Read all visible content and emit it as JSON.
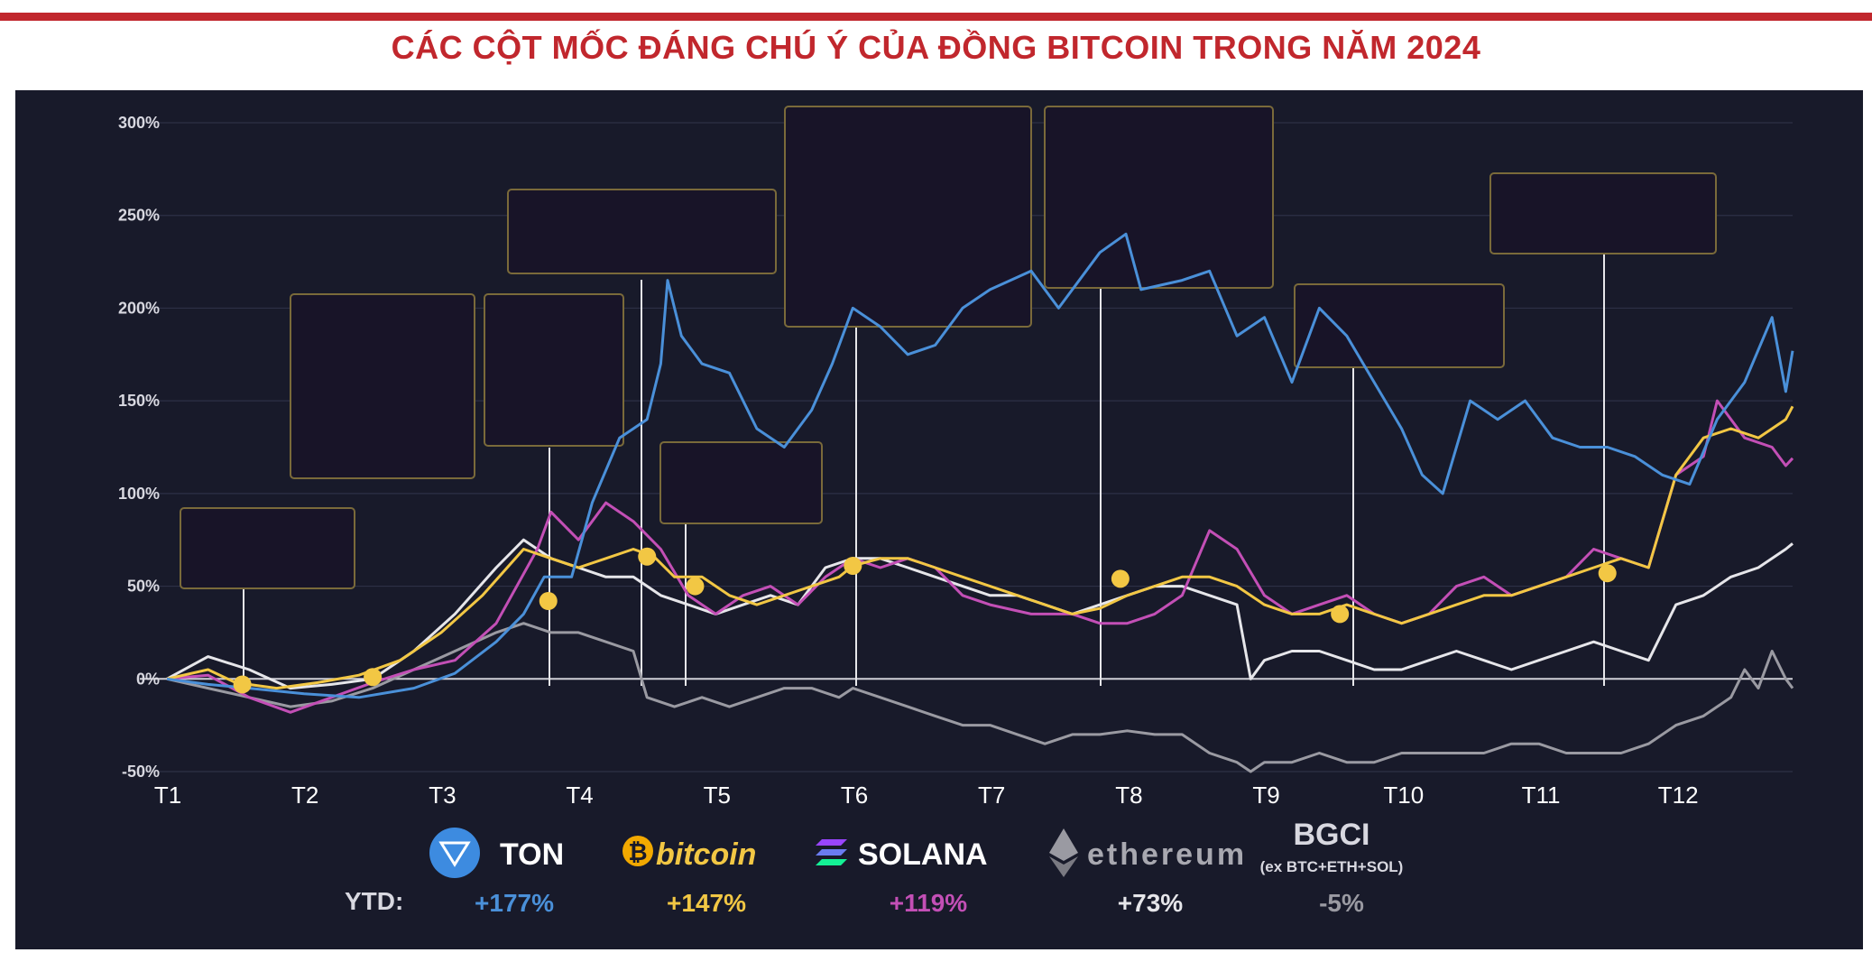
{
  "header": {
    "title": "CÁC CỘT MỐC ĐÁNG CHÚ Ý CỦA ĐỒNG BITCOIN TRONG NĂM 2024"
  },
  "legend": {
    "ytd_label": "YTD:",
    "items": [
      {
        "name": "TON",
        "ytd": "+177%",
        "color": "#4a90d9",
        "icon": "ton-icon"
      },
      {
        "name": "bitcoin",
        "ytd": "+147%",
        "color": "#f2c744",
        "icon": "bitcoin-icon"
      },
      {
        "name": "SOLANA",
        "ytd": "+119%",
        "color": "#c34fb6",
        "icon": "solana-icon"
      },
      {
        "name": "ethereum",
        "ytd": "+73%",
        "color": "#e6e6ea",
        "icon": "ethereum-icon"
      },
      {
        "name": "BGCI",
        "sub": "(ex BTC+ETH+SOL)",
        "ytd": "-5%",
        "color": "#9a9aa2",
        "icon": ""
      }
    ]
  },
  "colors": {
    "accent": "#c1272d",
    "background": "#181a2a",
    "milestone": "#f2c744"
  },
  "chart_data": {
    "type": "line",
    "x_ticks": [
      "T1",
      "T2",
      "T3",
      "T4",
      "T5",
      "T6",
      "T7",
      "T8",
      "T9",
      "T10",
      "T11",
      "T12"
    ],
    "y_ticks": [
      "300%",
      "250%",
      "200%",
      "150%",
      "100%",
      "50%",
      "0%",
      "-50%"
    ],
    "ylim": [
      -50,
      300
    ],
    "x_range": [
      0,
      11.85
    ],
    "grid": true,
    "series": [
      {
        "name": "TON",
        "color": "#4a90d9",
        "points": [
          [
            0,
            0
          ],
          [
            0.3,
            -3
          ],
          [
            0.6,
            -5
          ],
          [
            1,
            -8
          ],
          [
            1.4,
            -10
          ],
          [
            1.8,
            -5
          ],
          [
            2.1,
            3
          ],
          [
            2.4,
            20
          ],
          [
            2.6,
            35
          ],
          [
            2.75,
            55
          ],
          [
            2.95,
            55
          ],
          [
            3.1,
            95
          ],
          [
            3.3,
            130
          ],
          [
            3.5,
            140
          ],
          [
            3.6,
            170
          ],
          [
            3.65,
            215
          ],
          [
            3.75,
            185
          ],
          [
            3.9,
            170
          ],
          [
            4.1,
            165
          ],
          [
            4.3,
            135
          ],
          [
            4.5,
            125
          ],
          [
            4.7,
            145
          ],
          [
            4.85,
            170
          ],
          [
            5.0,
            200
          ],
          [
            5.2,
            190
          ],
          [
            5.4,
            175
          ],
          [
            5.6,
            180
          ],
          [
            5.8,
            200
          ],
          [
            6.0,
            210
          ],
          [
            6.3,
            220
          ],
          [
            6.5,
            200
          ],
          [
            6.8,
            230
          ],
          [
            6.99,
            240
          ],
          [
            7.1,
            210
          ],
          [
            7.4,
            215
          ],
          [
            7.6,
            220
          ],
          [
            7.8,
            185
          ],
          [
            8.0,
            195
          ],
          [
            8.2,
            160
          ],
          [
            8.4,
            200
          ],
          [
            8.6,
            185
          ],
          [
            8.8,
            160
          ],
          [
            9.0,
            135
          ],
          [
            9.15,
            110
          ],
          [
            9.3,
            100
          ],
          [
            9.5,
            150
          ],
          [
            9.7,
            140
          ],
          [
            9.9,
            150
          ],
          [
            10.1,
            130
          ],
          [
            10.3,
            125
          ],
          [
            10.5,
            125
          ],
          [
            10.7,
            120
          ],
          [
            10.9,
            110
          ],
          [
            11.1,
            105
          ],
          [
            11.3,
            140
          ],
          [
            11.5,
            160
          ],
          [
            11.7,
            195
          ],
          [
            11.8,
            155
          ],
          [
            11.85,
            177
          ]
        ]
      },
      {
        "name": "SOLANA",
        "color": "#c34fb6",
        "points": [
          [
            0,
            0
          ],
          [
            0.3,
            2
          ],
          [
            0.6,
            -10
          ],
          [
            0.9,
            -18
          ],
          [
            1.2,
            -10
          ],
          [
            1.5,
            -2
          ],
          [
            1.8,
            5
          ],
          [
            2.1,
            10
          ],
          [
            2.4,
            30
          ],
          [
            2.7,
            70
          ],
          [
            2.8,
            90
          ],
          [
            3.0,
            75
          ],
          [
            3.2,
            95
          ],
          [
            3.4,
            85
          ],
          [
            3.6,
            70
          ],
          [
            3.8,
            45
          ],
          [
            4.0,
            35
          ],
          [
            4.2,
            45
          ],
          [
            4.4,
            50
          ],
          [
            4.6,
            40
          ],
          [
            4.8,
            55
          ],
          [
            5.0,
            65
          ],
          [
            5.2,
            60
          ],
          [
            5.4,
            65
          ],
          [
            5.6,
            60
          ],
          [
            5.8,
            45
          ],
          [
            6.0,
            40
          ],
          [
            6.3,
            35
          ],
          [
            6.6,
            35
          ],
          [
            6.8,
            30
          ],
          [
            7.0,
            30
          ],
          [
            7.2,
            35
          ],
          [
            7.4,
            45
          ],
          [
            7.6,
            80
          ],
          [
            7.8,
            70
          ],
          [
            8.0,
            45
          ],
          [
            8.2,
            35
          ],
          [
            8.4,
            40
          ],
          [
            8.6,
            45
          ],
          [
            8.8,
            35
          ],
          [
            9.0,
            30
          ],
          [
            9.2,
            35
          ],
          [
            9.4,
            50
          ],
          [
            9.6,
            55
          ],
          [
            9.8,
            45
          ],
          [
            10.0,
            50
          ],
          [
            10.2,
            55
          ],
          [
            10.4,
            70
          ],
          [
            10.6,
            65
          ],
          [
            10.8,
            60
          ],
          [
            11.0,
            110
          ],
          [
            11.2,
            120
          ],
          [
            11.3,
            150
          ],
          [
            11.5,
            130
          ],
          [
            11.7,
            125
          ],
          [
            11.8,
            115
          ],
          [
            11.85,
            119
          ]
        ]
      },
      {
        "name": "bitcoin",
        "color": "#f2c744",
        "points": [
          [
            0,
            0
          ],
          [
            0.3,
            5
          ],
          [
            0.5,
            -2
          ],
          [
            0.8,
            -5
          ],
          [
            1.1,
            -2
          ],
          [
            1.4,
            2
          ],
          [
            1.7,
            10
          ],
          [
            2.0,
            25
          ],
          [
            2.3,
            45
          ],
          [
            2.6,
            70
          ],
          [
            2.8,
            65
          ],
          [
            3.0,
            60
          ],
          [
            3.2,
            65
          ],
          [
            3.4,
            70
          ],
          [
            3.55,
            66
          ],
          [
            3.7,
            55
          ],
          [
            3.9,
            55
          ],
          [
            4.1,
            45
          ],
          [
            4.3,
            40
          ],
          [
            4.5,
            45
          ],
          [
            4.7,
            50
          ],
          [
            4.9,
            55
          ],
          [
            5.0,
            61
          ],
          [
            5.2,
            65
          ],
          [
            5.4,
            65
          ],
          [
            5.6,
            60
          ],
          [
            5.8,
            55
          ],
          [
            6.0,
            50
          ],
          [
            6.2,
            45
          ],
          [
            6.4,
            40
          ],
          [
            6.6,
            35
          ],
          [
            6.8,
            38
          ],
          [
            7.0,
            45
          ],
          [
            7.2,
            50
          ],
          [
            7.4,
            55
          ],
          [
            7.6,
            55
          ],
          [
            7.8,
            50
          ],
          [
            8.0,
            40
          ],
          [
            8.2,
            35
          ],
          [
            8.4,
            35
          ],
          [
            8.6,
            40
          ],
          [
            8.8,
            35
          ],
          [
            9.0,
            30
          ],
          [
            9.2,
            35
          ],
          [
            9.4,
            40
          ],
          [
            9.6,
            45
          ],
          [
            9.8,
            45
          ],
          [
            10.0,
            50
          ],
          [
            10.2,
            55
          ],
          [
            10.4,
            60
          ],
          [
            10.6,
            65
          ],
          [
            10.8,
            60
          ],
          [
            11.0,
            110
          ],
          [
            11.2,
            130
          ],
          [
            11.4,
            135
          ],
          [
            11.6,
            130
          ],
          [
            11.8,
            140
          ],
          [
            11.85,
            147
          ]
        ]
      },
      {
        "name": "ethereum",
        "color": "#e6e6ea",
        "points": [
          [
            0,
            0
          ],
          [
            0.3,
            12
          ],
          [
            0.6,
            5
          ],
          [
            0.9,
            -5
          ],
          [
            1.2,
            -3
          ],
          [
            1.5,
            0
          ],
          [
            1.8,
            15
          ],
          [
            2.1,
            35
          ],
          [
            2.4,
            60
          ],
          [
            2.6,
            75
          ],
          [
            2.8,
            65
          ],
          [
            3.0,
            60
          ],
          [
            3.2,
            55
          ],
          [
            3.4,
            55
          ],
          [
            3.6,
            45
          ],
          [
            3.8,
            40
          ],
          [
            4.0,
            35
          ],
          [
            4.2,
            40
          ],
          [
            4.4,
            45
          ],
          [
            4.6,
            40
          ],
          [
            4.8,
            60
          ],
          [
            5.0,
            65
          ],
          [
            5.2,
            65
          ],
          [
            5.4,
            60
          ],
          [
            5.6,
            55
          ],
          [
            5.8,
            50
          ],
          [
            6.0,
            45
          ],
          [
            6.2,
            45
          ],
          [
            6.4,
            40
          ],
          [
            6.6,
            35
          ],
          [
            6.8,
            40
          ],
          [
            7.0,
            45
          ],
          [
            7.2,
            50
          ],
          [
            7.4,
            50
          ],
          [
            7.6,
            45
          ],
          [
            7.8,
            40
          ],
          [
            7.9,
            0
          ],
          [
            8.0,
            10
          ],
          [
            8.2,
            15
          ],
          [
            8.4,
            15
          ],
          [
            8.6,
            10
          ],
          [
            8.8,
            5
          ],
          [
            9.0,
            5
          ],
          [
            9.2,
            10
          ],
          [
            9.4,
            15
          ],
          [
            9.6,
            10
          ],
          [
            9.8,
            5
          ],
          [
            10.0,
            10
          ],
          [
            10.2,
            15
          ],
          [
            10.4,
            20
          ],
          [
            10.6,
            15
          ],
          [
            10.8,
            10
          ],
          [
            11.0,
            40
          ],
          [
            11.2,
            45
          ],
          [
            11.4,
            55
          ],
          [
            11.6,
            60
          ],
          [
            11.8,
            70
          ],
          [
            11.85,
            73
          ]
        ]
      },
      {
        "name": "BGCI",
        "color": "#9a9aa2",
        "points": [
          [
            0,
            0
          ],
          [
            0.3,
            -5
          ],
          [
            0.6,
            -10
          ],
          [
            0.9,
            -15
          ],
          [
            1.2,
            -12
          ],
          [
            1.5,
            -5
          ],
          [
            1.8,
            5
          ],
          [
            2.1,
            15
          ],
          [
            2.4,
            25
          ],
          [
            2.6,
            30
          ],
          [
            2.8,
            25
          ],
          [
            3.0,
            25
          ],
          [
            3.2,
            20
          ],
          [
            3.4,
            15
          ],
          [
            3.5,
            -10
          ],
          [
            3.7,
            -15
          ],
          [
            3.9,
            -10
          ],
          [
            4.1,
            -15
          ],
          [
            4.3,
            -10
          ],
          [
            4.5,
            -5
          ],
          [
            4.7,
            -5
          ],
          [
            4.9,
            -10
          ],
          [
            5.0,
            -5
          ],
          [
            5.2,
            -10
          ],
          [
            5.4,
            -15
          ],
          [
            5.6,
            -20
          ],
          [
            5.8,
            -25
          ],
          [
            6.0,
            -25
          ],
          [
            6.2,
            -30
          ],
          [
            6.4,
            -35
          ],
          [
            6.6,
            -30
          ],
          [
            6.8,
            -30
          ],
          [
            7.0,
            -28
          ],
          [
            7.2,
            -30
          ],
          [
            7.4,
            -30
          ],
          [
            7.6,
            -40
          ],
          [
            7.8,
            -45
          ],
          [
            7.9,
            -50
          ],
          [
            8.0,
            -45
          ],
          [
            8.2,
            -45
          ],
          [
            8.4,
            -40
          ],
          [
            8.6,
            -45
          ],
          [
            8.8,
            -45
          ],
          [
            9.0,
            -40
          ],
          [
            9.2,
            -40
          ],
          [
            9.4,
            -40
          ],
          [
            9.6,
            -40
          ],
          [
            9.8,
            -35
          ],
          [
            10.0,
            -35
          ],
          [
            10.2,
            -40
          ],
          [
            10.4,
            -40
          ],
          [
            10.6,
            -40
          ],
          [
            10.8,
            -35
          ],
          [
            11.0,
            -25
          ],
          [
            11.2,
            -20
          ],
          [
            11.4,
            -10
          ],
          [
            11.5,
            5
          ],
          [
            11.6,
            -5
          ],
          [
            11.7,
            15
          ],
          [
            11.8,
            0
          ],
          [
            11.85,
            -5
          ]
        ]
      }
    ],
    "milestones": [
      {
        "x": 0.55,
        "y": -3
      },
      {
        "x": 1.5,
        "y": 1
      },
      {
        "x": 2.78,
        "y": 42
      },
      {
        "x": 3.5,
        "y": 66
      },
      {
        "x": 3.85,
        "y": 50
      },
      {
        "x": 5.0,
        "y": 61
      },
      {
        "x": 6.95,
        "y": 54
      },
      {
        "x": 8.55,
        "y": 35
      },
      {
        "x": 10.5,
        "y": 57
      }
    ]
  }
}
